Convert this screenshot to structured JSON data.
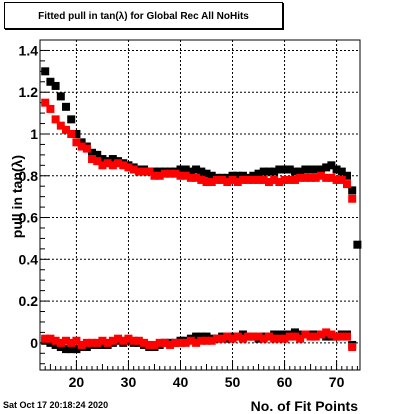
{
  "title": "Fitted pull in tan(λ) for Global Rec All NoHits",
  "datestamp": "Sat Oct 17 20:18:24 2020",
  "chart_data": {
    "type": "scatter",
    "title": "Fitted pull in tan(λ) for Global Rec All NoHits",
    "xlabel": "No. of Fit Points",
    "ylabel": "pull in tan(λ)",
    "xlim": [
      13,
      74.5
    ],
    "ylim": [
      -0.13,
      1.45
    ],
    "x_ticks": [
      20,
      30,
      40,
      50,
      60,
      70
    ],
    "y_ticks": [
      0,
      0.2,
      0.4,
      0.6,
      0.8,
      1,
      1.2,
      1.4
    ],
    "y_tick_labels": [
      "0",
      "0.2",
      "0.4",
      "0.6",
      "0.8",
      "1",
      "1.2",
      "1.4"
    ],
    "grid": true,
    "series": [
      {
        "color": "#000000",
        "marker": "square",
        "x": [
          14,
          15,
          16,
          17,
          18,
          19,
          20,
          21,
          22,
          23,
          24,
          25,
          26,
          27,
          28,
          29,
          30,
          31,
          32,
          33,
          34,
          35,
          36,
          37,
          38,
          39,
          40,
          41,
          42,
          43,
          44,
          45,
          46,
          47,
          48,
          49,
          50,
          51,
          52,
          53,
          54,
          55,
          56,
          57,
          58,
          59,
          60,
          61,
          62,
          63,
          64,
          65,
          66,
          67,
          68,
          69,
          70,
          71,
          72,
          73
        ],
        "y": [
          1.3,
          1.25,
          1.23,
          1.18,
          1.13,
          1.07,
          1.0,
          0.96,
          0.94,
          0.91,
          0.9,
          0.88,
          0.87,
          0.88,
          0.87,
          0.86,
          0.85,
          0.84,
          0.83,
          0.83,
          0.82,
          0.82,
          0.82,
          0.82,
          0.82,
          0.82,
          0.83,
          0.83,
          0.82,
          0.83,
          0.82,
          0.81,
          0.8,
          0.79,
          0.79,
          0.79,
          0.8,
          0.8,
          0.8,
          0.79,
          0.8,
          0.81,
          0.82,
          0.82,
          0.82,
          0.83,
          0.83,
          0.83,
          0.82,
          0.82,
          0.83,
          0.83,
          0.83,
          0.83,
          0.84,
          0.85,
          0.83,
          0.82,
          0.8,
          0.73
        ]
      },
      {
        "color": "#ff0000",
        "marker": "square",
        "x": [
          14,
          15,
          16,
          17,
          18,
          19,
          20,
          21,
          22,
          23,
          24,
          25,
          26,
          27,
          28,
          29,
          30,
          31,
          32,
          33,
          34,
          35,
          36,
          37,
          38,
          39,
          40,
          41,
          42,
          43,
          44,
          45,
          46,
          47,
          48,
          49,
          50,
          51,
          52,
          53,
          54,
          55,
          56,
          57,
          58,
          59,
          60,
          61,
          62,
          63,
          64,
          65,
          66,
          67,
          68,
          69,
          70,
          71,
          72,
          73
        ],
        "y": [
          1.15,
          1.12,
          1.07,
          1.04,
          1.02,
          1.0,
          0.96,
          0.94,
          0.93,
          0.88,
          0.87,
          0.85,
          0.86,
          0.85,
          0.86,
          0.85,
          0.84,
          0.83,
          0.82,
          0.82,
          0.82,
          0.8,
          0.8,
          0.81,
          0.81,
          0.81,
          0.8,
          0.8,
          0.79,
          0.79,
          0.78,
          0.77,
          0.77,
          0.78,
          0.78,
          0.77,
          0.78,
          0.77,
          0.78,
          0.78,
          0.78,
          0.78,
          0.78,
          0.77,
          0.78,
          0.77,
          0.78,
          0.78,
          0.78,
          0.79,
          0.79,
          0.79,
          0.79,
          0.8,
          0.79,
          0.79,
          0.78,
          0.78,
          0.76,
          0.69
        ]
      },
      {
        "color": "#000000",
        "marker": "square",
        "x": [
          14,
          15,
          16,
          17,
          18,
          19,
          20,
          21,
          22,
          23,
          24,
          25,
          26,
          27,
          28,
          29,
          30,
          31,
          32,
          33,
          34,
          35,
          36,
          37,
          38,
          39,
          40,
          41,
          42,
          43,
          44,
          45,
          46,
          47,
          48,
          49,
          50,
          51,
          52,
          53,
          54,
          55,
          56,
          57,
          58,
          59,
          60,
          61,
          62,
          63,
          64,
          65,
          66,
          67,
          68,
          69,
          70,
          71,
          72,
          73,
          74
        ],
        "y": [
          0.01,
          0.0,
          -0.01,
          -0.02,
          -0.03,
          -0.03,
          -0.03,
          -0.02,
          -0.02,
          -0.01,
          -0.01,
          -0.01,
          -0.01,
          0.0,
          0.01,
          0.0,
          0.01,
          0.0,
          0.0,
          -0.01,
          -0.02,
          -0.02,
          -0.01,
          0.0,
          0.0,
          0.0,
          0.01,
          0.01,
          0.02,
          0.03,
          0.03,
          0.03,
          0.02,
          0.02,
          0.03,
          0.02,
          0.03,
          0.03,
          0.04,
          0.03,
          0.03,
          0.02,
          0.03,
          0.03,
          0.04,
          0.04,
          0.04,
          0.04,
          0.05,
          0.04,
          0.04,
          0.04,
          0.04,
          0.04,
          0.03,
          0.03,
          0.03,
          0.04,
          0.04,
          -0.01,
          0.47
        ]
      },
      {
        "color": "#ff0000",
        "marker": "square",
        "x": [
          14,
          15,
          16,
          17,
          18,
          19,
          20,
          21,
          22,
          23,
          24,
          25,
          26,
          27,
          28,
          29,
          30,
          31,
          32,
          33,
          34,
          35,
          36,
          37,
          38,
          39,
          40,
          41,
          42,
          43,
          44,
          45,
          46,
          47,
          48,
          49,
          50,
          51,
          52,
          53,
          54,
          55,
          56,
          57,
          58,
          59,
          60,
          61,
          62,
          63,
          64,
          65,
          66,
          67,
          68,
          69,
          70,
          71,
          72,
          73
        ],
        "y": [
          0.02,
          0.02,
          0.01,
          0.0,
          0.01,
          0.0,
          0.01,
          -0.01,
          0.0,
          0.0,
          0.0,
          0.01,
          0.0,
          0.01,
          0.02,
          0.01,
          0.02,
          0.01,
          0.01,
          0.0,
          -0.01,
          -0.01,
          0.0,
          0.0,
          -0.01,
          0.0,
          0.0,
          0.0,
          0.01,
          0.0,
          0.01,
          0.01,
          0.01,
          0.02,
          0.02,
          0.03,
          0.02,
          0.03,
          0.02,
          0.03,
          0.03,
          0.03,
          0.02,
          0.03,
          0.02,
          0.02,
          0.02,
          0.03,
          0.03,
          0.02,
          0.04,
          0.03,
          0.03,
          0.04,
          0.05,
          0.04,
          0.03,
          0.03,
          0.03,
          -0.02
        ]
      }
    ]
  }
}
